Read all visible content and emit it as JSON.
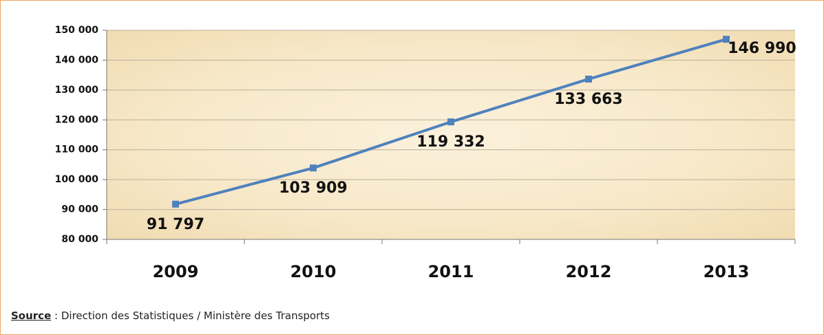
{
  "chart_data": {
    "type": "line",
    "categories": [
      "2009",
      "2010",
      "2011",
      "2012",
      "2013"
    ],
    "series": [
      {
        "name": null,
        "color": "#4f81bd",
        "values": [
          91797,
          103909,
          119332,
          133663,
          146990
        ],
        "value_labels": [
          "91 797",
          "103 909",
          "119 332",
          "133 663",
          "146 990"
        ]
      }
    ],
    "ylim": [
      80000,
      150000
    ],
    "yticks": [
      {
        "value": 80000,
        "label": "80 000"
      },
      {
        "value": 90000,
        "label": "90 000"
      },
      {
        "value": 100000,
        "label": "100 000"
      },
      {
        "value": 110000,
        "label": "110 000"
      },
      {
        "value": 120000,
        "label": "120 000"
      },
      {
        "value": 130000,
        "label": "130 000"
      },
      {
        "value": 140000,
        "label": "140 000"
      },
      {
        "value": 150000,
        "label": "150 000"
      }
    ],
    "grid": true,
    "source_label": "Source",
    "source_text": ": Direction des Statistiques / Ministère des Transports"
  }
}
